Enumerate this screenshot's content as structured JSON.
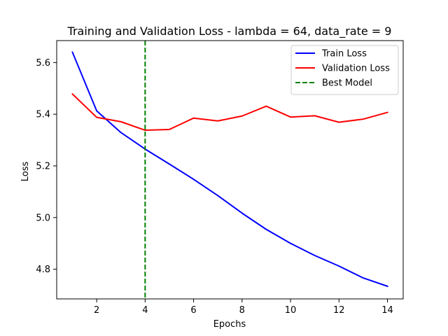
{
  "chart_data": {
    "type": "line",
    "title": "Training and Validation Loss - lambda = 64, data_rate = 9",
    "xlabel": "Epochs",
    "ylabel": "Loss",
    "x": [
      1,
      2,
      3,
      4,
      5,
      6,
      7,
      8,
      9,
      10,
      11,
      12,
      13,
      14
    ],
    "xlim": [
      0.35,
      14.65
    ],
    "ylim": [
      4.685,
      5.685
    ],
    "xticks": [
      2,
      4,
      6,
      8,
      10,
      12,
      14
    ],
    "xtick_labels": [
      "2",
      "4",
      "6",
      "8",
      "10",
      "12",
      "14"
    ],
    "yticks": [
      4.8,
      5.0,
      5.2,
      5.4,
      5.6
    ],
    "ytick_labels": [
      "4.8",
      "5.0",
      "5.2",
      "5.4",
      "5.6"
    ],
    "grid": false,
    "legend_position": "top-right",
    "series": [
      {
        "name": "Train Loss",
        "color": "#0000ff",
        "style": "solid",
        "values": [
          5.64,
          5.413,
          5.329,
          5.265,
          5.207,
          5.148,
          5.085,
          5.017,
          4.954,
          4.9,
          4.853,
          4.812,
          4.766,
          4.734
        ]
      },
      {
        "name": "Validation Loss",
        "color": "#ff0000",
        "style": "solid",
        "values": [
          5.478,
          5.388,
          5.371,
          5.338,
          5.341,
          5.385,
          5.374,
          5.393,
          5.431,
          5.389,
          5.394,
          5.369,
          5.381,
          5.407
        ]
      }
    ],
    "vlines": [
      {
        "name": "Best Model",
        "x": 4,
        "color": "#008000",
        "style": "dashed"
      }
    ]
  }
}
